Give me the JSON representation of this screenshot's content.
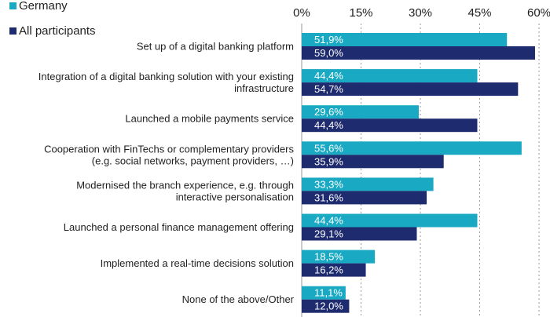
{
  "chart_data": {
    "type": "bar",
    "orientation": "horizontal",
    "categories": [
      [
        "Set up of a digital banking platform"
      ],
      [
        "Integration of a digital banking solution with your existing",
        "infrastructure"
      ],
      [
        "Launched a mobile payments service"
      ],
      [
        "Cooperation with FinTechs or complementary providers",
        "(e.g. social networks, payment providers, …)"
      ],
      [
        "Modernised the branch experience, e.g. through",
        "interactive personalisation"
      ],
      [
        "Launched a personal finance management offering"
      ],
      [
        "Implemented a real-time decisions solution"
      ],
      [
        "None of the above/Other"
      ]
    ],
    "series": [
      {
        "name": "Germany",
        "color": "#19A9C3",
        "values": [
          51.9,
          44.4,
          29.6,
          55.6,
          33.3,
          44.4,
          18.5,
          11.1
        ],
        "labels": [
          "51,9%",
          "44,4%",
          "29,6%",
          "55,6%",
          "33,3%",
          "44,4%",
          "18,5%",
          "11,1%"
        ]
      },
      {
        "name": "All participants",
        "color": "#1E2B6E",
        "values": [
          59.0,
          54.7,
          44.4,
          35.9,
          31.6,
          29.1,
          16.2,
          12.0
        ],
        "labels": [
          "59,0%",
          "54,7%",
          "44,4%",
          "35,9%",
          "31,6%",
          "29,1%",
          "16,2%",
          "12,0%"
        ]
      }
    ],
    "xlim": [
      0,
      60
    ],
    "xticks": [
      0,
      15,
      30,
      45,
      60
    ],
    "xtick_labels": [
      "0%",
      "15%",
      "30%",
      "45%",
      "60%"
    ],
    "grid": true,
    "legend_position": "top-left",
    "title": "",
    "xlabel": "",
    "ylabel": ""
  }
}
